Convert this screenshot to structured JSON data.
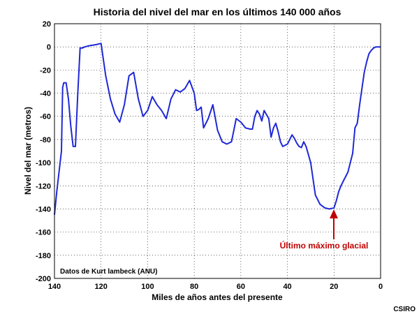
{
  "chart_data": {
    "type": "line",
    "title": "Historia del nivel del mar en los últimos 140 000 años",
    "xlabel": "Miles de años antes del presente",
    "ylabel": "Nivel del mar (metros)",
    "xlim": [
      140,
      0
    ],
    "ylim": [
      -200,
      20
    ],
    "x_ticks": [
      140,
      120,
      100,
      80,
      60,
      40,
      20,
      0
    ],
    "y_ticks": [
      20,
      0,
      -20,
      -40,
      -60,
      -80,
      -100,
      -120,
      -140,
      -160,
      -180,
      -200
    ],
    "grid": true,
    "series": [
      {
        "color": "#1f28d6",
        "x": [
          140,
          139,
          137,
          136.5,
          136,
          135,
          134,
          133,
          132,
          131,
          130,
          129,
          128,
          127,
          125,
          122,
          120,
          118,
          116,
          114,
          112,
          110,
          108,
          106,
          104,
          102,
          100,
          98,
          96,
          94,
          92,
          90,
          88,
          86,
          84,
          82,
          80,
          79,
          78,
          77,
          76,
          74,
          72,
          70,
          68,
          66,
          64,
          63,
          62,
          60,
          58,
          56,
          55,
          54,
          53,
          52,
          51,
          50,
          48,
          47,
          46,
          45,
          44,
          43,
          42,
          40,
          38,
          37,
          36,
          35,
          34,
          33,
          32,
          30,
          28,
          26,
          24,
          22,
          20,
          19,
          18,
          17,
          16,
          15,
          14,
          12,
          11,
          10,
          9,
          8,
          7,
          6,
          5,
          4,
          3,
          2,
          1,
          0
        ],
        "y": [
          -145,
          -125,
          -90,
          -35,
          -31,
          -31,
          -45,
          -68,
          -86,
          -86,
          -40,
          -1,
          -1,
          0,
          1,
          2,
          3,
          -25,
          -45,
          -58,
          -65,
          -50,
          -25,
          -22,
          -45,
          -60,
          -55,
          -43,
          -50,
          -55,
          -62,
          -45,
          -37,
          -39,
          -36,
          -29,
          -40,
          -55,
          -54,
          -52,
          -70,
          -62,
          -50,
          -72,
          -82,
          -84,
          -82,
          -72,
          -62,
          -65,
          -70,
          -71,
          -71,
          -60,
          -55,
          -58,
          -64,
          -55,
          -62,
          -78,
          -70,
          -66,
          -73,
          -82,
          -86,
          -84,
          -76,
          -79,
          -83,
          -86,
          -87,
          -82,
          -86,
          -100,
          -128,
          -136,
          -139,
          -140,
          -139,
          -133,
          -125,
          -120,
          -116,
          -112,
          -108,
          -92,
          -70,
          -66,
          -50,
          -36,
          -22,
          -13,
          -6,
          -3,
          -1,
          0,
          0,
          0
        ]
      }
    ],
    "annotations": [
      {
        "text": "Último máximo glacial",
        "x": 20,
        "y": -140,
        "color": "#c00000"
      },
      {
        "text": "Datos de Kurt lambeck (ANU)"
      }
    ]
  },
  "credit": "CSIRO"
}
